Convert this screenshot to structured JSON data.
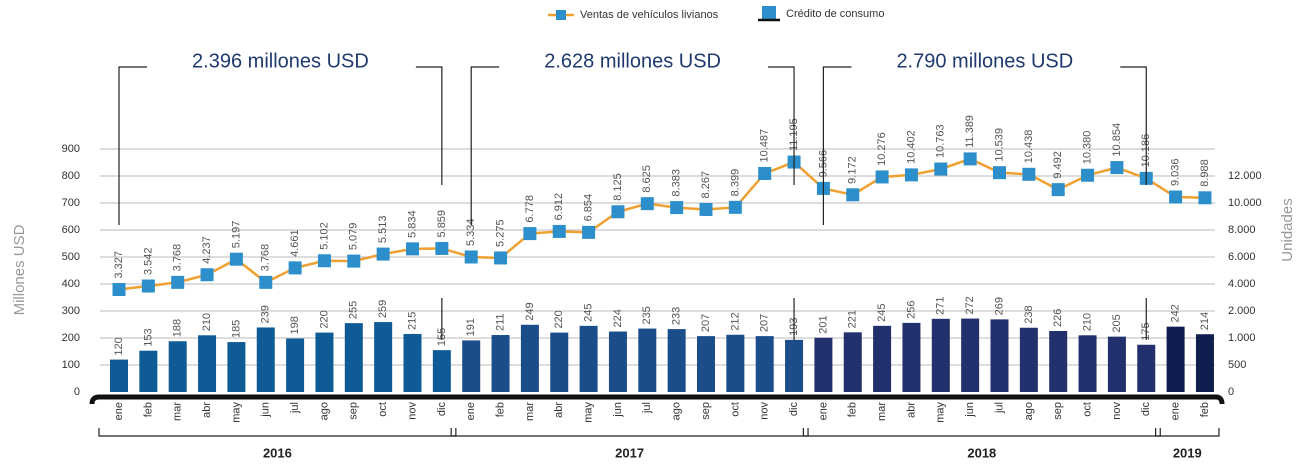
{
  "chart_data": {
    "type": "bar-line",
    "legend": "top",
    "ylabel": "Millones USD",
    "y2label": "Unidades",
    "ylim": [
      0,
      900
    ],
    "yticks": [
      0,
      100,
      200,
      300,
      400,
      500,
      600,
      700,
      800,
      900
    ],
    "y2lim": [
      -3000,
      12000
    ],
    "y2ticks": [
      0,
      500,
      {
        "value": 1000,
        "label": "1.000"
      },
      {
        "value": 2000,
        "label": "2.000"
      },
      {
        "value": 4000,
        "label": "4.000"
      },
      {
        "value": 6000,
        "label": "6.000"
      },
      {
        "value": 8000,
        "label": "8.000"
      },
      {
        "value": 10000,
        "label": "10.000"
      },
      {
        "value": 12000,
        "label": "12.000"
      }
    ],
    "grid": true,
    "groups": [
      {
        "name": "2016",
        "color": "#0e5b96",
        "categories": [
          "ene",
          "feb",
          "mar",
          "abr",
          "may",
          "jun",
          "jul",
          "ago",
          "sep",
          "oct",
          "nov",
          "dic"
        ]
      },
      {
        "name": "2017",
        "color": "#1b4d8b",
        "categories": [
          "ene",
          "feb",
          "mar",
          "abr",
          "may",
          "jun",
          "jul",
          "ago",
          "sep",
          "oct",
          "nov",
          "dic"
        ]
      },
      {
        "name": "2018",
        "color": "#22306e",
        "categories": [
          "ene",
          "feb",
          "mar",
          "abr",
          "may",
          "jun",
          "jul",
          "ago",
          "sep",
          "oct",
          "nov",
          "dic"
        ]
      },
      {
        "name": "2019",
        "color": "#0f1d4f",
        "categories": [
          "ene",
          "feb"
        ]
      }
    ],
    "annotations": [
      "2.396 millones USD",
      "2.628  millones USD",
      "2.790  millones USD"
    ],
    "series": [
      {
        "name": "Ventas de vehículos livianos",
        "type": "line",
        "axis": "y2",
        "color": "#f0a030",
        "marker_color": "#2c8fcb",
        "values": [
          3327,
          3542,
          3768,
          4237,
          5197,
          3768,
          4661,
          5102,
          5079,
          5513,
          5834,
          5859,
          5334,
          5275,
          6778,
          6912,
          6854,
          8125,
          8625,
          8383,
          8267,
          8399,
          10487,
          11195,
          9566,
          9172,
          10276,
          10402,
          10763,
          11389,
          10539,
          10438,
          9492,
          10380,
          10854,
          10186,
          9036,
          8988
        ],
        "value_labels": [
          "3.327",
          "3.542",
          "3.768",
          "4.237",
          "5.197",
          "3.768",
          "4.661",
          "5.102",
          "5.079",
          "5.513",
          "5.834",
          "5.859",
          "5.334",
          "5.275",
          "6.778",
          "6.912",
          "6.854",
          "8.125",
          "8.625",
          "8.383",
          "8.267",
          "8.399",
          "10.487",
          "11.195",
          "9.566",
          "9.172",
          "10.276",
          "10.402",
          "10.763",
          "11.389",
          "10.539",
          "10.438",
          "9.492",
          "10.380",
          "10.854",
          "10.186",
          "9.036",
          "8.988"
        ]
      },
      {
        "name": "Crédito de consumo",
        "type": "bar",
        "color": "#0e5b96",
        "values": [
          120,
          153,
          188,
          210,
          185,
          239,
          198,
          220,
          255,
          259,
          215,
          155,
          191,
          211,
          249,
          220,
          245,
          224,
          235,
          233,
          207,
          212,
          207,
          193,
          201,
          221,
          245,
          256,
          271,
          272,
          269,
          238,
          226,
          210,
          205,
          175,
          242,
          214
        ]
      }
    ]
  }
}
